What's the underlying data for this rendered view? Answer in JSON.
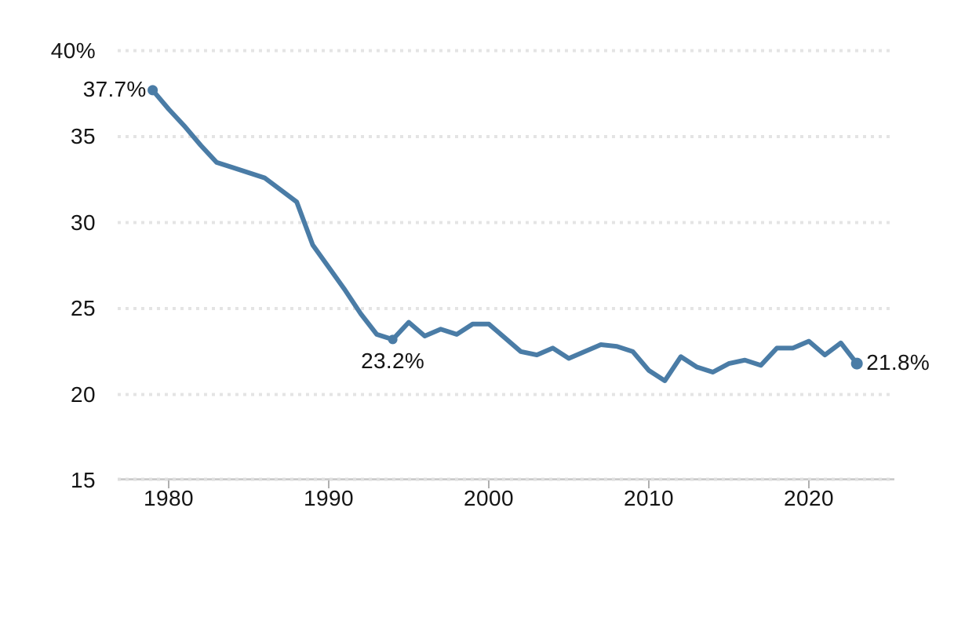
{
  "chart_data": {
    "type": "line",
    "grid": "dotted-horizontal",
    "legend": "none",
    "y_axis": {
      "min": 15,
      "max": 40,
      "unit": "%"
    },
    "x_axis": {
      "first_year": 1979,
      "last_year": 2023
    },
    "y_ticks": [
      {
        "value": 40,
        "label": "40%"
      },
      {
        "value": 35,
        "label": "35"
      },
      {
        "value": 30,
        "label": "30"
      },
      {
        "value": 25,
        "label": "25"
      },
      {
        "value": 20,
        "label": "20"
      },
      {
        "value": 15,
        "label": "15"
      }
    ],
    "x_ticks": [
      {
        "value": 1980,
        "label": "1980"
      },
      {
        "value": 1990,
        "label": "1990"
      },
      {
        "value": 2000,
        "label": "2000"
      },
      {
        "value": 2010,
        "label": "2010"
      },
      {
        "value": 2020,
        "label": "2020"
      }
    ],
    "x": [
      1979,
      1980,
      1981,
      1982,
      1983,
      1984,
      1985,
      1986,
      1987,
      1988,
      1989,
      1990,
      1991,
      1992,
      1993,
      1994,
      1995,
      1996,
      1997,
      1998,
      1999,
      2000,
      2001,
      2002,
      2003,
      2004,
      2005,
      2006,
      2007,
      2008,
      2009,
      2010,
      2011,
      2012,
      2013,
      2014,
      2015,
      2016,
      2017,
      2018,
      2019,
      2020,
      2021,
      2022,
      2023
    ],
    "values": [
      37.7,
      36.6,
      35.6,
      34.5,
      33.5,
      33.2,
      32.9,
      32.6,
      31.9,
      31.2,
      28.7,
      27.4,
      26.1,
      24.7,
      23.5,
      23.2,
      24.2,
      23.4,
      23.8,
      23.5,
      24.1,
      24.1,
      23.3,
      22.5,
      22.3,
      22.7,
      22.1,
      22.5,
      22.9,
      22.8,
      22.5,
      21.4,
      20.8,
      22.2,
      21.6,
      21.3,
      21.8,
      22.0,
      21.7,
      22.7,
      22.7,
      23.1,
      22.3,
      23.0,
      21.8
    ],
    "annotations": [
      {
        "label": "37.7%",
        "year": 1979,
        "value": 37.7,
        "placement": "left"
      },
      {
        "label": "23.2%",
        "year": 1994,
        "value": 23.2,
        "placement": "below"
      },
      {
        "label": "21.8%",
        "year": 2023,
        "value": 21.8,
        "placement": "right"
      }
    ],
    "colors": {
      "line": "#4a7ca6",
      "marker": "#4a7ca6",
      "text": "#141414",
      "gridline": "#e4e4e4",
      "axis_line": "#c6c6c6",
      "axis_dots": "#dedede",
      "tick_mark": "#b0b0b0",
      "background": "#ffffff"
    }
  }
}
